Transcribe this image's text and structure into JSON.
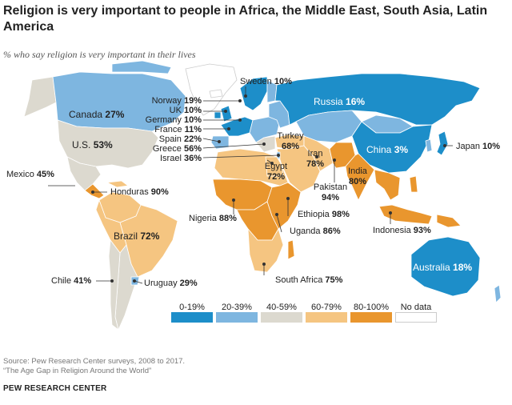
{
  "title": "Religion is very important to people in Africa, the Middle East, South Asia, Latin America",
  "subtitle": "% who say religion is very important in their lives",
  "colors": {
    "c0_19": "#1d8ec9",
    "c20_39": "#7eb6e0",
    "c40_59": "#dcd9cf",
    "c60_79": "#f5c581",
    "c80_100": "#e9962e",
    "nodata": "#ffffff"
  },
  "countries": [
    {
      "name": "Sweden",
      "value": "10%"
    },
    {
      "name": "Norway",
      "value": "19%"
    },
    {
      "name": "UK",
      "value": "10%"
    },
    {
      "name": "Germany",
      "value": "10%"
    },
    {
      "name": "France",
      "value": "11%"
    },
    {
      "name": "Spain",
      "value": "22%"
    },
    {
      "name": "Greece",
      "value": "56%"
    },
    {
      "name": "Israel",
      "value": "36%"
    },
    {
      "name": "Russia",
      "value": "16%"
    },
    {
      "name": "Canada",
      "value": "27%"
    },
    {
      "name": "U.S.",
      "value": "53%"
    },
    {
      "name": "Mexico",
      "value": "45%"
    },
    {
      "name": "Honduras",
      "value": "90%"
    },
    {
      "name": "Brazil",
      "value": "72%"
    },
    {
      "name": "Chile",
      "value": "41%"
    },
    {
      "name": "Uruguay",
      "value": "29%"
    },
    {
      "name": "Turkey",
      "value": "68%"
    },
    {
      "name": "Iran",
      "value": "78%"
    },
    {
      "name": "Egypt",
      "value": "72%"
    },
    {
      "name": "India",
      "value": "80%"
    },
    {
      "name": "Pakistan",
      "value": "94%"
    },
    {
      "name": "China",
      "value": "3%"
    },
    {
      "name": "Japan",
      "value": "10%"
    },
    {
      "name": "Nigeria",
      "value": "88%"
    },
    {
      "name": "Ethiopia",
      "value": "98%"
    },
    {
      "name": "Uganda",
      "value": "86%"
    },
    {
      "name": "Indonesia",
      "value": "93%"
    },
    {
      "name": "South Africa",
      "value": "75%"
    },
    {
      "name": "Australia",
      "value": "18%"
    }
  ],
  "legend": [
    {
      "label": "0-19%",
      "color": "#1d8ec9"
    },
    {
      "label": "20-39%",
      "color": "#7eb6e0"
    },
    {
      "label": "40-59%",
      "color": "#dcd9cf"
    },
    {
      "label": "60-79%",
      "color": "#f5c581"
    },
    {
      "label": "80-100%",
      "color": "#e9962e"
    },
    {
      "label": "No data",
      "color": "#ffffff"
    }
  ],
  "source_line1": "Source: Pew Research Center surveys, 2008 to 2017.",
  "source_line2": "“The Age Gap in Religion Around the World”",
  "footer": "PEW RESEARCH CENTER"
}
